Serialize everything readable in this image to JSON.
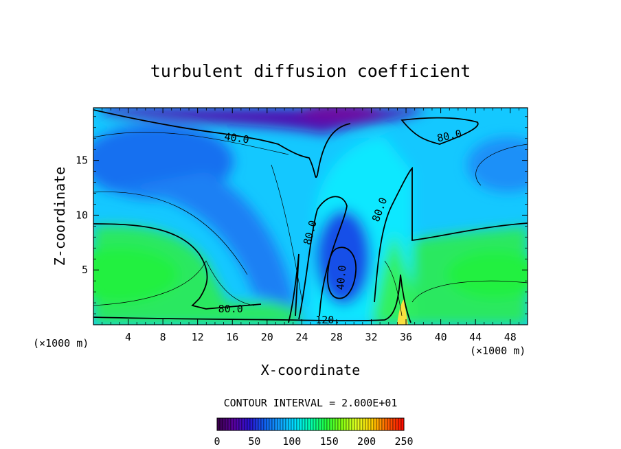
{
  "chart_data": {
    "type": "heatmap",
    "title": "turbulent diffusion coefficient",
    "xlabel": "X-coordinate",
    "ylabel": "Z-coordinate",
    "x_unit_left": "(×1000 m)",
    "x_unit_right": "(×1000 m)",
    "xlim": [
      0,
      50
    ],
    "ylim": [
      0,
      19.8
    ],
    "x_ticks": [
      4,
      8,
      12,
      16,
      20,
      24,
      28,
      32,
      36,
      40,
      44,
      48
    ],
    "y_ticks": [
      5,
      10,
      15
    ],
    "contour_interval_text": "CONTOUR INTERVAL = 2.000E+01",
    "contour_labels": [
      {
        "text": "40.0",
        "x": 16.5,
        "z": 17.0,
        "angle": 8
      },
      {
        "text": "80.0",
        "x": 41.0,
        "z": 17.2,
        "angle": -12
      },
      {
        "text": "80.0",
        "x": 25.0,
        "z": 8.4,
        "angle": -75
      },
      {
        "text": "80.0",
        "x": 33.0,
        "z": 10.5,
        "angle": -70
      },
      {
        "text": "80.0",
        "x": 15.8,
        "z": 1.4,
        "angle": 0
      },
      {
        "text": "120.",
        "x": 27.0,
        "z": 0.4,
        "angle": 0
      },
      {
        "text": "40.0",
        "x": 28.6,
        "z": 4.3,
        "angle": -85
      }
    ],
    "colorbar": {
      "range": [
        0,
        250
      ],
      "tick_labels": [
        "0",
        "50",
        "100",
        "150",
        "200",
        "250"
      ],
      "tick_values": [
        0,
        50,
        100,
        150,
        200,
        250
      ]
    },
    "palette": [
      "#3c0050",
      "#5a00a0",
      "#2a10d0",
      "#1060f0",
      "#10a0ff",
      "#00e0ff",
      "#00ffb0",
      "#20ff40",
      "#80ff10",
      "#e0ff20",
      "#ffd000",
      "#ff6000",
      "#ff1000"
    ]
  }
}
